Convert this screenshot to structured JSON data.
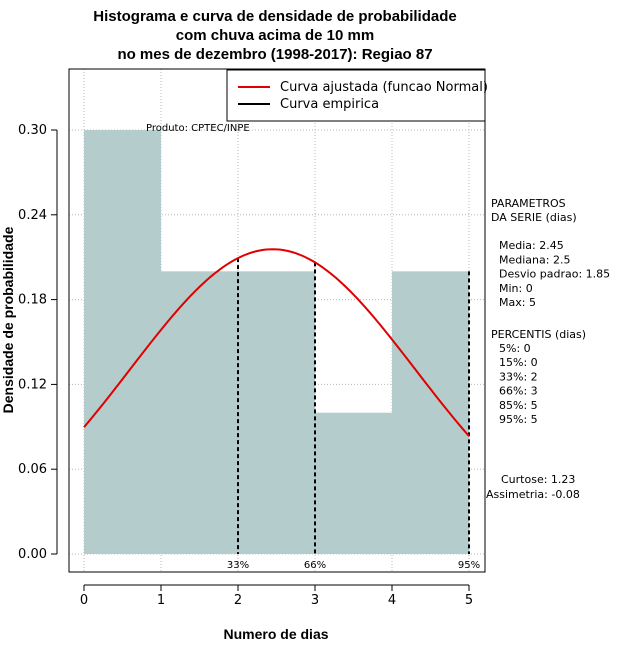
{
  "chart_data": {
    "type": "bar",
    "title_lines": [
      "Histograma e curva de densidade de probabilidade",
      "com chuva acima de 10 mm",
      "no mes de dezembro (1998-2017): Regiao 87"
    ],
    "xlabel": "Numero de dias",
    "ylabel": "Densidade de probabilidade",
    "xlim": [
      0,
      5
    ],
    "ylim": [
      0,
      0.33
    ],
    "x_ticks": [
      0,
      1,
      2,
      3,
      4,
      5
    ],
    "y_ticks": [
      "0.00",
      "0.06",
      "0.12",
      "0.18",
      "0.24",
      "0.30"
    ],
    "grid": true,
    "bins": [
      {
        "from": 0,
        "to": 1,
        "value": 0.3
      },
      {
        "from": 1,
        "to": 2,
        "value": 0.2
      },
      {
        "from": 2,
        "to": 3,
        "value": 0.2
      },
      {
        "from": 3,
        "to": 4,
        "value": 0.1
      },
      {
        "from": 4,
        "to": 5,
        "value": 0.2
      }
    ],
    "bar_color": "#b4cccc",
    "normal_curve": {
      "mean": 2.45,
      "sd": 1.85,
      "color": "#e00000"
    },
    "percentile_lines": [
      {
        "x": 2,
        "label": "33%"
      },
      {
        "x": 3,
        "label": "66%"
      },
      {
        "x": 5,
        "label": "95%"
      }
    ],
    "legend": {
      "position": "top-right",
      "items": [
        {
          "label": "Curva ajustada (funcao Normal)",
          "color": "#e00000"
        },
        {
          "label": "Curva empirica",
          "color": "#000000"
        }
      ]
    },
    "product_note": "Produto: CPTEC/INPE",
    "parametros": {
      "title_lines": [
        "PARAMETROS",
        "DA SERIE (dias)"
      ],
      "lines": [
        "Media: 2.45",
        "Mediana: 2.5",
        "Desvio padrao: 1.85",
        "Min: 0",
        "Max: 5"
      ]
    },
    "percentis": {
      "title": "PERCENTIS (dias)",
      "lines": [
        "5%: 0",
        "15%: 0",
        "33%: 2",
        "66%: 3",
        "85%: 5",
        "95%: 5"
      ]
    },
    "curtose": "Curtose: 1.23",
    "assimetria": "Assimetria: -0.08"
  }
}
